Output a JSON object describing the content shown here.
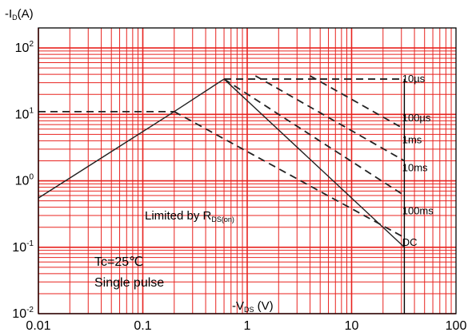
{
  "chart_data": {
    "type": "line",
    "ylabel": {
      "prefix": "-I",
      "sub": "D",
      "suffix": "(A)"
    },
    "xlabel": {
      "prefix": "-V",
      "sub": "DS",
      "suffix": " (V)"
    },
    "x_scale": "log",
    "y_scale": "log",
    "xlim": [
      0.01,
      100
    ],
    "ylim": [
      0.01,
      200
    ],
    "x_ticks": [
      {
        "value": 0.01,
        "label": "0.01"
      },
      {
        "value": 0.1,
        "label": "0.1"
      },
      {
        "value": 1,
        "label": "1"
      },
      {
        "value": 10,
        "label": "10"
      },
      {
        "value": 100,
        "label": "100"
      }
    ],
    "y_ticks": [
      {
        "value": 0.01,
        "base": "10",
        "exp": "-2"
      },
      {
        "value": 0.1,
        "base": "10",
        "exp": "-1"
      },
      {
        "value": 1,
        "base": "10",
        "exp": "0"
      },
      {
        "value": 10,
        "base": "10",
        "exp": "1"
      },
      {
        "value": 100,
        "base": "10",
        "exp": "2"
      }
    ],
    "grid": true,
    "grid_color": "#e8231f",
    "series": [
      {
        "name": "Limited by RDS(on)",
        "style": "solid",
        "points": [
          [
            0.01,
            0.55
          ],
          [
            0.2,
            11
          ],
          [
            0.6,
            34
          ]
        ]
      },
      {
        "name": "",
        "style": "dashed",
        "points": [
          [
            0.01,
            11
          ],
          [
            0.2,
            11
          ]
        ]
      },
      {
        "name": "10µs",
        "style": "dashed",
        "points": [
          [
            0.6,
            34
          ],
          [
            32,
            34
          ]
        ]
      },
      {
        "name": "100µs",
        "style": "dashed",
        "points": [
          [
            4,
            38
          ],
          [
            32,
            6
          ]
        ]
      },
      {
        "name": "1ms",
        "style": "dashed",
        "points": [
          [
            1.2,
            38
          ],
          [
            32,
            2
          ]
        ]
      },
      {
        "name": "10ms",
        "style": "dashed",
        "points": [
          [
            0.6,
            34
          ],
          [
            32,
            0.6
          ]
        ]
      },
      {
        "name": "100ms",
        "style": "dashed",
        "points": [
          [
            0.2,
            11
          ],
          [
            32,
            0.14
          ]
        ]
      },
      {
        "name": "DC",
        "style": "solid",
        "points": [
          [
            0.6,
            34
          ],
          [
            32,
            0.1
          ]
        ]
      }
    ],
    "curve_labels": [
      {
        "text": "10µs",
        "x": 45,
        "y": 35
      },
      {
        "text": "100µs",
        "x": 45,
        "y": 9
      },
      {
        "text": "1ms",
        "x": 45,
        "y": 4.2
      },
      {
        "text": "10ms",
        "x": 45,
        "y": 1.6
      },
      {
        "text": "100ms",
        "x": 45,
        "y": 0.36
      },
      {
        "text": "DC",
        "x": 45,
        "y": 0.12
      }
    ],
    "annotations": {
      "rds_limit": {
        "prefix": "Limited by R",
        "sub": "DS(on)"
      },
      "temperature": "Tc=25℃",
      "pulse": "Single pulse"
    }
  }
}
